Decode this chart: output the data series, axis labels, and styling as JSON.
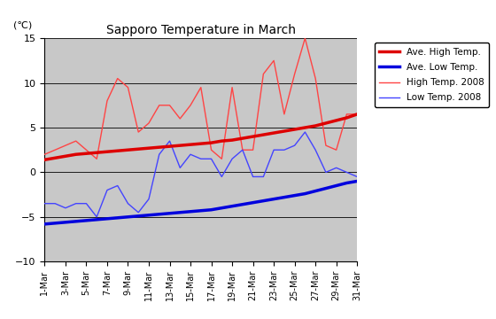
{
  "title": "Sapporo Temperature in March",
  "ylabel": "(℃)",
  "ylim": [
    -10,
    15
  ],
  "yticks": [
    -10,
    -5,
    0,
    5,
    10,
    15
  ],
  "days": [
    1,
    2,
    3,
    4,
    5,
    6,
    7,
    8,
    9,
    10,
    11,
    12,
    13,
    14,
    15,
    16,
    17,
    18,
    19,
    20,
    21,
    22,
    23,
    24,
    25,
    26,
    27,
    28,
    29,
    30,
    31
  ],
  "ave_high": [
    1.4,
    1.6,
    1.8,
    2.0,
    2.1,
    2.2,
    2.3,
    2.4,
    2.5,
    2.6,
    2.7,
    2.8,
    2.9,
    3.0,
    3.1,
    3.2,
    3.3,
    3.5,
    3.6,
    3.8,
    4.0,
    4.2,
    4.4,
    4.6,
    4.8,
    5.0,
    5.2,
    5.5,
    5.8,
    6.1,
    6.5
  ],
  "ave_low": [
    -5.8,
    -5.7,
    -5.6,
    -5.5,
    -5.4,
    -5.3,
    -5.2,
    -5.1,
    -5.0,
    -4.9,
    -4.8,
    -4.7,
    -4.6,
    -4.5,
    -4.4,
    -4.3,
    -4.2,
    -4.0,
    -3.8,
    -3.6,
    -3.4,
    -3.2,
    -3.0,
    -2.8,
    -2.6,
    -2.4,
    -2.1,
    -1.8,
    -1.5,
    -1.2,
    -1.0
  ],
  "high_2008": [
    2.0,
    2.5,
    3.0,
    3.5,
    2.5,
    1.5,
    8.0,
    10.5,
    9.5,
    4.5,
    5.5,
    7.5,
    7.5,
    6.0,
    7.5,
    9.5,
    2.5,
    1.5,
    9.5,
    2.5,
    2.5,
    11.0,
    12.5,
    6.5,
    11.0,
    15.0,
    10.5,
    3.0,
    2.5,
    6.5,
    6.5
  ],
  "low_2008": [
    -3.5,
    -3.5,
    -4.0,
    -3.5,
    -3.5,
    -5.0,
    -2.0,
    -1.5,
    -3.5,
    -4.5,
    -3.0,
    2.0,
    3.5,
    0.5,
    2.0,
    1.5,
    1.5,
    -0.5,
    1.5,
    2.5,
    -0.5,
    -0.5,
    2.5,
    2.5,
    3.0,
    4.5,
    2.5,
    0.0,
    0.5,
    0.0,
    -0.5
  ],
  "color_ave_high": "#dd0000",
  "color_ave_low": "#0000dd",
  "color_high_2008": "#ff4444",
  "color_low_2008": "#4444ff",
  "background_color": "#c8c8c8",
  "legend_labels": [
    "Ave. High Temp.",
    "Ave. Low Temp.",
    "High Temp. 2008",
    "Low Temp. 2008"
  ]
}
